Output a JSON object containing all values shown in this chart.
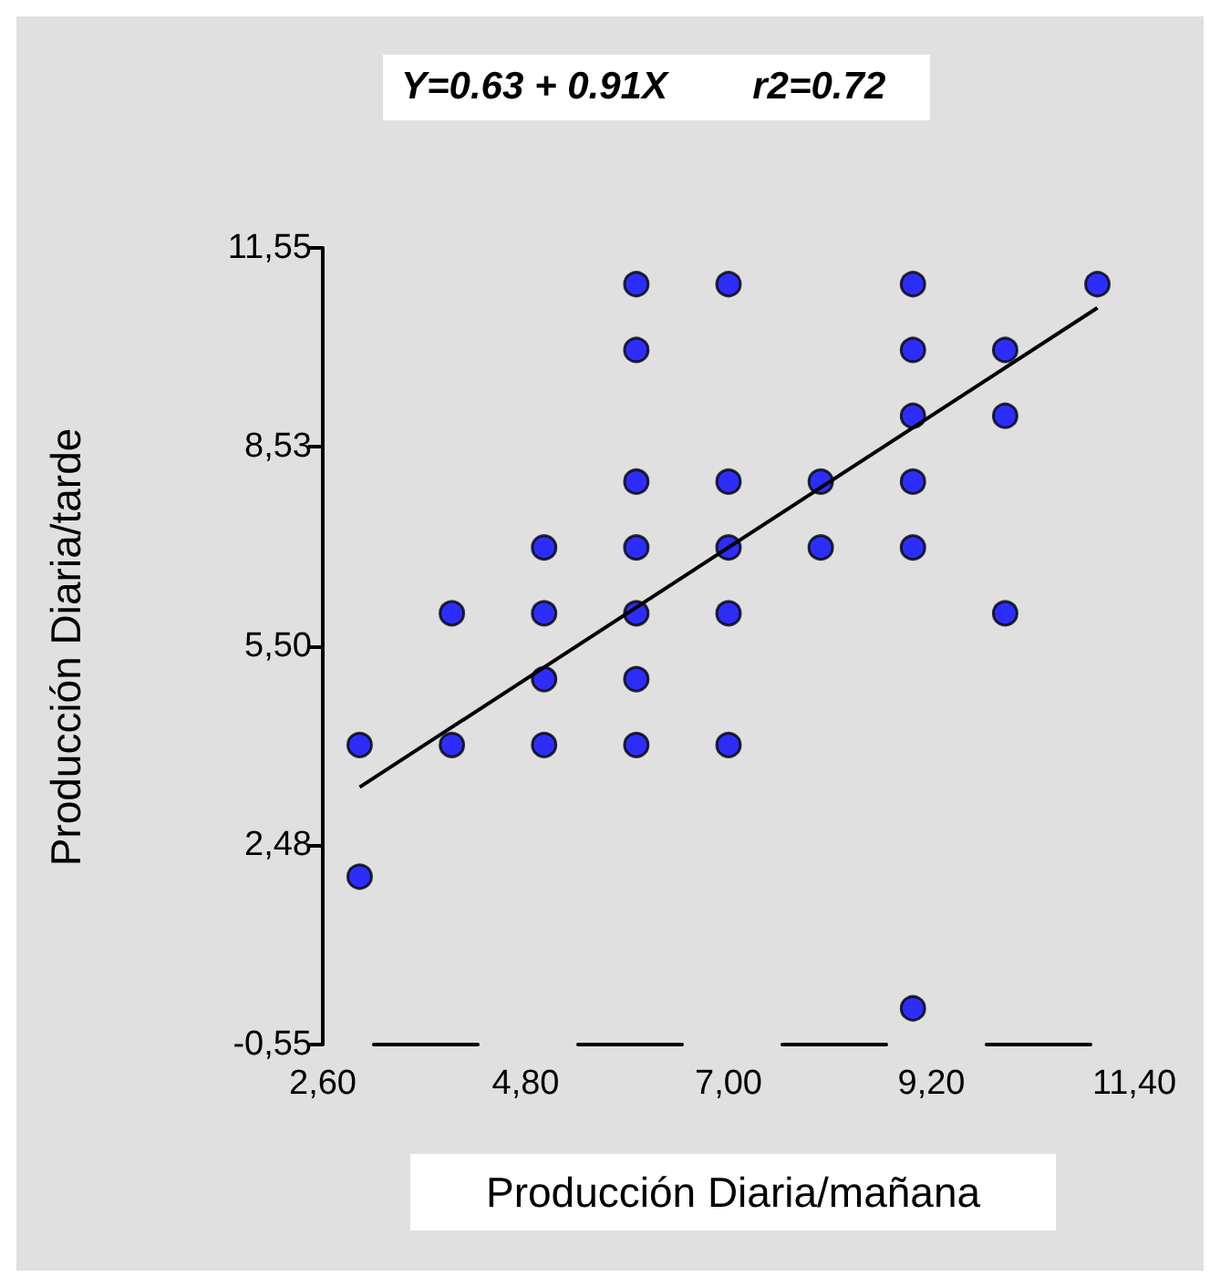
{
  "chart_data": {
    "type": "scatter",
    "title": "Y=0.63 + 0.91X        r2=0.72",
    "xlabel": "Producción Diaria/mañana",
    "ylabel": "Producción Diaria/tarde",
    "xlim": [
      2.6,
      11.4
    ],
    "ylim": [
      -0.55,
      11.55
    ],
    "xticks": [
      {
        "value": 2.6,
        "label": "2,60"
      },
      {
        "value": 4.8,
        "label": "4,80"
      },
      {
        "value": 7,
        "label": "7,00"
      },
      {
        "value": 9.2,
        "label": "9,20"
      },
      {
        "value": 11.4,
        "label": "11,40"
      }
    ],
    "yticks": [
      {
        "value": -0.55,
        "label": "-0,55"
      },
      {
        "value": 2.48,
        "label": "2,48"
      },
      {
        "value": 5.5,
        "label": "5,50"
      },
      {
        "value": 8.53,
        "label": "8,53"
      },
      {
        "value": 11.55,
        "label": "11,55"
      }
    ],
    "marker": "circle",
    "series": [
      {
        "color": "#0000ff",
        "x": [
          3,
          3,
          4,
          4,
          5,
          5,
          5,
          5,
          6,
          6,
          6,
          6,
          6,
          6,
          6,
          7,
          7,
          7,
          7,
          7,
          8,
          8,
          9,
          9,
          9,
          9,
          9,
          9,
          10,
          10,
          10,
          11
        ],
        "values": [
          4,
          2,
          6,
          4,
          7,
          6,
          5,
          4,
          11,
          10,
          8,
          7,
          6,
          5,
          4,
          11,
          8,
          7,
          6,
          4,
          8,
          7,
          11,
          10,
          9,
          8,
          7,
          0,
          10,
          9,
          6,
          11
        ]
      },
      {
        "type": "line",
        "color": "#000000",
        "marker": "none",
        "line_style": "solid",
        "x": [
          3,
          11
        ],
        "values": [
          3.36,
          10.64
        ]
      }
    ]
  }
}
